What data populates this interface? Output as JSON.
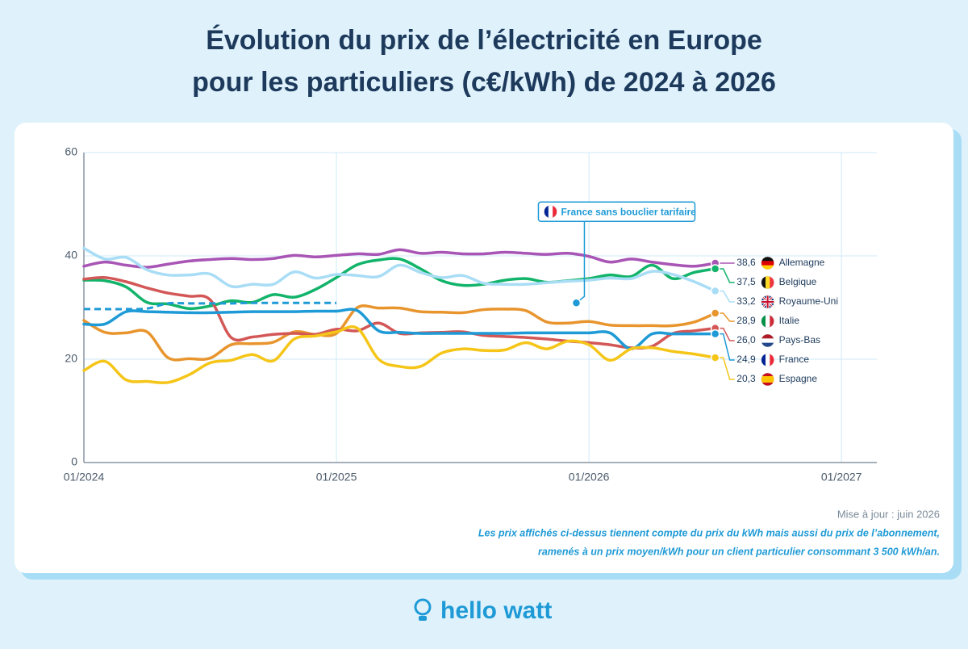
{
  "title": [
    "Évolution du prix de l’électricité en Europe",
    "pour les particuliers (c€/kWh) de 2024 à 2026"
  ],
  "chart_data": {
    "type": "line",
    "x": [
      2024,
      2024.083,
      2024.167,
      2024.25,
      2024.333,
      2024.417,
      2024.5,
      2024.583,
      2024.667,
      2024.75,
      2024.833,
      2024.917,
      2025,
      2025.083,
      2025.167,
      2025.25,
      2025.333,
      2025.417,
      2025.5,
      2025.583,
      2025.667,
      2025.75,
      2025.833,
      2025.917,
      2026,
      2026.083,
      2026.167,
      2026.25,
      2026.333,
      2026.417,
      2026.5
    ],
    "xlim": [
      2024,
      2027.14
    ],
    "xticks": [
      {
        "value": 2024,
        "label": "01/2024"
      },
      {
        "value": 2025,
        "label": "01/2025"
      },
      {
        "value": 2026,
        "label": "01/2026"
      },
      {
        "value": 2027,
        "label": "01/2027"
      }
    ],
    "ylim": [
      0,
      60
    ],
    "yticks": [
      0,
      20,
      40,
      60
    ],
    "grid": true,
    "series": [
      {
        "name": "Allemagne",
        "color": "#a855b5",
        "values": [
          38.0,
          38.8,
          38.2,
          37.8,
          38.4,
          39.0,
          39.3,
          39.5,
          39.3,
          39.5,
          40.1,
          39.8,
          40.1,
          40.4,
          40.3,
          41.2,
          40.5,
          40.7,
          40.4,
          40.4,
          40.7,
          40.5,
          40.3,
          40.5,
          39.9,
          38.8,
          39.4,
          38.8,
          38.3,
          38.0,
          38.6
        ],
        "value_labels": [
          null,
          null,
          null,
          null,
          null,
          null,
          null,
          null,
          null,
          null,
          null,
          null,
          null,
          null,
          null,
          null,
          null,
          null,
          null,
          null,
          null,
          null,
          null,
          null,
          null,
          null,
          null,
          null,
          null,
          null,
          "38,6"
        ]
      },
      {
        "name": "Belgique",
        "color": "#12b36a",
        "values": [
          35.3,
          35.2,
          34.0,
          31.0,
          30.7,
          29.8,
          30.3,
          31.3,
          31.0,
          32.5,
          32.0,
          33.5,
          35.8,
          38.3,
          39.2,
          39.4,
          37.5,
          35.2,
          34.3,
          34.5,
          35.3,
          35.6,
          34.9,
          35.2,
          35.6,
          36.3,
          36.0,
          38.2,
          35.6,
          36.8,
          37.5
        ],
        "value_labels": [
          null,
          null,
          null,
          null,
          null,
          null,
          null,
          null,
          null,
          null,
          null,
          null,
          null,
          null,
          null,
          null,
          null,
          null,
          null,
          null,
          null,
          null,
          null,
          null,
          null,
          null,
          null,
          null,
          null,
          null,
          "37,5"
        ]
      },
      {
        "name": "Royaume-Uni",
        "color": "#a9ddf6",
        "values": [
          41.5,
          39.4,
          39.7,
          37.3,
          36.3,
          36.3,
          36.5,
          34.1,
          34.5,
          34.5,
          36.9,
          35.7,
          36.4,
          36.2,
          36.0,
          38.2,
          36.8,
          35.8,
          36.2,
          34.7,
          34.5,
          34.5,
          34.8,
          35.1,
          35.3,
          35.7,
          35.6,
          37.0,
          36.4,
          35.0,
          33.2
        ],
        "value_labels": [
          null,
          null,
          null,
          null,
          null,
          null,
          null,
          null,
          null,
          null,
          null,
          null,
          null,
          null,
          null,
          null,
          null,
          null,
          null,
          null,
          null,
          null,
          null,
          null,
          null,
          null,
          null,
          null,
          null,
          null,
          "33,2"
        ]
      },
      {
        "name": "Italie",
        "color": "#e8952e",
        "values": [
          27.5,
          25.2,
          25.1,
          25.3,
          20.3,
          20.1,
          20.2,
          22.8,
          23.0,
          23.3,
          25.3,
          24.8,
          25.0,
          30.0,
          29.9,
          29.9,
          29.2,
          29.1,
          29.0,
          29.6,
          29.7,
          29.4,
          27.2,
          27.0,
          27.3,
          26.6,
          26.5,
          26.5,
          26.5,
          27.2,
          28.9
        ],
        "value_labels": [
          null,
          null,
          null,
          null,
          null,
          null,
          null,
          null,
          null,
          null,
          null,
          null,
          null,
          null,
          null,
          null,
          null,
          null,
          null,
          null,
          null,
          null,
          null,
          null,
          null,
          null,
          null,
          null,
          null,
          null,
          "28,9"
        ]
      },
      {
        "name": "Pays-Bas",
        "color": "#d35757",
        "values": [
          35.5,
          35.8,
          35.0,
          33.8,
          32.8,
          32.2,
          31.5,
          24.2,
          24.3,
          24.8,
          25.0,
          24.8,
          25.8,
          25.5,
          27.0,
          25.0,
          25.1,
          25.2,
          25.3,
          24.6,
          24.4,
          24.2,
          23.9,
          23.5,
          23.2,
          22.8,
          22.2,
          22.5,
          25.0,
          25.5,
          26.0
        ],
        "value_labels": [
          null,
          null,
          null,
          null,
          null,
          null,
          null,
          null,
          null,
          null,
          null,
          null,
          null,
          null,
          null,
          null,
          null,
          null,
          null,
          null,
          null,
          null,
          null,
          null,
          null,
          null,
          null,
          null,
          null,
          null,
          "26,0"
        ]
      },
      {
        "name": "France",
        "color": "#1e9ad6",
        "values": [
          26.8,
          26.8,
          29.2,
          29.2,
          29.1,
          29.0,
          29.0,
          29.1,
          29.2,
          29.2,
          29.2,
          29.3,
          29.3,
          29.4,
          25.5,
          25.2,
          25.0,
          25.0,
          25.0,
          25.0,
          25.0,
          25.1,
          25.1,
          25.1,
          25.1,
          25.1,
          22.0,
          24.9,
          24.9,
          24.9,
          24.9
        ],
        "value_labels": [
          null,
          null,
          null,
          null,
          null,
          null,
          null,
          null,
          null,
          null,
          null,
          null,
          null,
          null,
          null,
          null,
          null,
          null,
          null,
          null,
          null,
          null,
          null,
          null,
          null,
          null,
          null,
          null,
          null,
          null,
          "24,9"
        ]
      },
      {
        "name": "Espagne",
        "color": "#f5c518",
        "values": [
          17.8,
          19.6,
          16.0,
          15.7,
          15.5,
          17.0,
          19.3,
          19.8,
          20.9,
          19.7,
          23.9,
          24.5,
          25.3,
          26.0,
          20.0,
          18.6,
          18.6,
          21.2,
          22.0,
          21.7,
          21.8,
          23.2,
          22.0,
          23.5,
          22.8,
          19.8,
          22.0,
          22.2,
          21.5,
          21.0,
          20.3
        ],
        "value_labels": [
          null,
          null,
          null,
          null,
          null,
          null,
          null,
          null,
          null,
          null,
          null,
          null,
          null,
          null,
          null,
          null,
          null,
          null,
          null,
          null,
          null,
          null,
          null,
          null,
          null,
          null,
          null,
          null,
          null,
          null,
          "20,3"
        ]
      },
      {
        "name": "France sans bouclier tarifaire",
        "color": "#1e9ad6",
        "dashed": true,
        "values": [
          29.7,
          29.7,
          29.7,
          29.8,
          30.8,
          30.8,
          30.8,
          30.8,
          30.9,
          30.9,
          30.9,
          30.9,
          30.9,
          null,
          null,
          null,
          null,
          null,
          null,
          null,
          null,
          null,
          null,
          null,
          null,
          null,
          null,
          null,
          null,
          null,
          null
        ]
      }
    ],
    "annotation": {
      "x": 2025.95,
      "y": 30.9
    }
  },
  "update_note": "Mise à jour : juin 2026",
  "note": [
    "Les prix affichés ci-dessus tiennent compte du prix du kWh mais aussi du prix de l’abonnement,",
    "ramenés à un prix moyen/kWh pour un client particulier consommant 3 500 kWh/an."
  ],
  "brand": "hello watt"
}
